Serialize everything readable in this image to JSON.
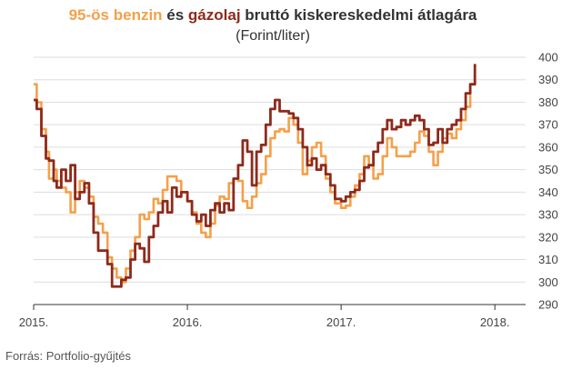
{
  "title_parts": {
    "benzin": "95-ös benzin",
    "es": " és ",
    "gazolaj": "gázolaj",
    "rest": " bruttó kiskereskedelmi átlagára"
  },
  "subtitle": "(Forint/liter)",
  "source": "Forrás: Portfolio-gyűjtés",
  "colors": {
    "benzin": "#f5a04a",
    "gazolaj": "#8e2a1c"
  },
  "chart_data": {
    "type": "line",
    "ylim": [
      290,
      400
    ],
    "yticks": [
      "290",
      "300",
      "310",
      "320",
      "330",
      "340",
      "350",
      "360",
      "370",
      "380",
      "390",
      "400"
    ],
    "xlim": [
      2015.0,
      2018.2
    ],
    "xticks": [
      {
        "label": "2015.",
        "value": 2015.0
      },
      {
        "label": "2016.",
        "value": 2016.0
      },
      {
        "label": "2017.",
        "value": 2017.0
      },
      {
        "label": "2018.",
        "value": 2018.0
      }
    ],
    "series": [
      {
        "name": "95-ös benzin",
        "color": "#f5a04a",
        "points": [
          [
            2015.0,
            388
          ],
          [
            2015.02,
            380
          ],
          [
            2015.05,
            368
          ],
          [
            2015.08,
            358
          ],
          [
            2015.1,
            346
          ],
          [
            2015.13,
            350
          ],
          [
            2015.15,
            345
          ],
          [
            2015.18,
            342
          ],
          [
            2015.21,
            340
          ],
          [
            2015.24,
            331
          ],
          [
            2015.27,
            340
          ],
          [
            2015.3,
            345
          ],
          [
            2015.33,
            342
          ],
          [
            2015.36,
            338
          ],
          [
            2015.39,
            329
          ],
          [
            2015.42,
            326
          ],
          [
            2015.45,
            322
          ],
          [
            2015.48,
            311
          ],
          [
            2015.51,
            306
          ],
          [
            2015.54,
            302
          ],
          [
            2015.57,
            300
          ],
          [
            2015.6,
            306
          ],
          [
            2015.63,
            314
          ],
          [
            2015.66,
            320
          ],
          [
            2015.69,
            330
          ],
          [
            2015.72,
            328
          ],
          [
            2015.75,
            331
          ],
          [
            2015.78,
            337
          ],
          [
            2015.81,
            335
          ],
          [
            2015.84,
            341
          ],
          [
            2015.87,
            347
          ],
          [
            2015.9,
            347
          ],
          [
            2015.93,
            345
          ],
          [
            2015.96,
            340
          ],
          [
            2016.0,
            336
          ],
          [
            2016.03,
            331
          ],
          [
            2016.06,
            326
          ],
          [
            2016.09,
            322
          ],
          [
            2016.12,
            320
          ],
          [
            2016.15,
            326
          ],
          [
            2016.18,
            334
          ],
          [
            2016.21,
            338
          ],
          [
            2016.24,
            337
          ],
          [
            2016.27,
            344
          ],
          [
            2016.3,
            346
          ],
          [
            2016.33,
            345
          ],
          [
            2016.36,
            336
          ],
          [
            2016.39,
            333
          ],
          [
            2016.42,
            338
          ],
          [
            2016.45,
            344
          ],
          [
            2016.48,
            348
          ],
          [
            2016.51,
            356
          ],
          [
            2016.54,
            364
          ],
          [
            2016.57,
            367
          ],
          [
            2016.6,
            368
          ],
          [
            2016.63,
            367
          ],
          [
            2016.66,
            373
          ],
          [
            2016.69,
            370
          ],
          [
            2016.72,
            362
          ],
          [
            2016.75,
            348
          ],
          [
            2016.78,
            354
          ],
          [
            2016.81,
            360
          ],
          [
            2016.84,
            362
          ],
          [
            2016.87,
            356
          ],
          [
            2016.9,
            346
          ],
          [
            2016.93,
            340
          ],
          [
            2016.96,
            335
          ],
          [
            2017.0,
            333
          ],
          [
            2017.03,
            334
          ],
          [
            2017.06,
            338
          ],
          [
            2017.09,
            343
          ],
          [
            2017.12,
            348
          ],
          [
            2017.15,
            356
          ],
          [
            2017.18,
            352
          ],
          [
            2017.21,
            346
          ],
          [
            2017.24,
            348
          ],
          [
            2017.27,
            356
          ],
          [
            2017.3,
            364
          ],
          [
            2017.33,
            360
          ],
          [
            2017.36,
            356
          ],
          [
            2017.39,
            356
          ],
          [
            2017.42,
            356
          ],
          [
            2017.45,
            358
          ],
          [
            2017.48,
            362
          ],
          [
            2017.51,
            367
          ],
          [
            2017.54,
            365
          ],
          [
            2017.57,
            358
          ],
          [
            2017.6,
            352
          ],
          [
            2017.63,
            358
          ],
          [
            2017.66,
            364
          ],
          [
            2017.69,
            366
          ],
          [
            2017.72,
            364
          ],
          [
            2017.75,
            368
          ],
          [
            2017.78,
            372
          ],
          [
            2017.81,
            378
          ],
          [
            2017.84,
            388
          ],
          [
            2017.87,
            392
          ]
        ]
      },
      {
        "name": "gázolaj",
        "color": "#8e2a1c",
        "points": [
          [
            2015.0,
            381
          ],
          [
            2015.02,
            377
          ],
          [
            2015.05,
            365
          ],
          [
            2015.08,
            355
          ],
          [
            2015.1,
            354
          ],
          [
            2015.13,
            345
          ],
          [
            2015.15,
            342
          ],
          [
            2015.18,
            350
          ],
          [
            2015.21,
            345
          ],
          [
            2015.24,
            352
          ],
          [
            2015.27,
            337
          ],
          [
            2015.3,
            340
          ],
          [
            2015.33,
            344
          ],
          [
            2015.36,
            335
          ],
          [
            2015.39,
            322
          ],
          [
            2015.42,
            314
          ],
          [
            2015.45,
            314
          ],
          [
            2015.48,
            308
          ],
          [
            2015.51,
            298
          ],
          [
            2015.54,
            298
          ],
          [
            2015.57,
            301
          ],
          [
            2015.6,
            302
          ],
          [
            2015.63,
            310
          ],
          [
            2015.66,
            317
          ],
          [
            2015.69,
            315
          ],
          [
            2015.72,
            309
          ],
          [
            2015.75,
            320
          ],
          [
            2015.78,
            325
          ],
          [
            2015.81,
            331
          ],
          [
            2015.84,
            336
          ],
          [
            2015.87,
            331
          ],
          [
            2015.9,
            342
          ],
          [
            2015.93,
            338
          ],
          [
            2015.96,
            340
          ],
          [
            2016.0,
            336
          ],
          [
            2016.03,
            330
          ],
          [
            2016.06,
            327
          ],
          [
            2016.09,
            330
          ],
          [
            2016.12,
            325
          ],
          [
            2016.15,
            332
          ],
          [
            2016.18,
            335
          ],
          [
            2016.21,
            331
          ],
          [
            2016.24,
            335
          ],
          [
            2016.27,
            332
          ],
          [
            2016.3,
            346
          ],
          [
            2016.33,
            352
          ],
          [
            2016.36,
            363
          ],
          [
            2016.39,
            358
          ],
          [
            2016.42,
            343
          ],
          [
            2016.45,
            358
          ],
          [
            2016.48,
            361
          ],
          [
            2016.51,
            370
          ],
          [
            2016.54,
            377
          ],
          [
            2016.57,
            381
          ],
          [
            2016.6,
            376
          ],
          [
            2016.63,
            376
          ],
          [
            2016.66,
            375
          ],
          [
            2016.69,
            373
          ],
          [
            2016.72,
            368
          ],
          [
            2016.75,
            360
          ],
          [
            2016.78,
            352
          ],
          [
            2016.81,
            355
          ],
          [
            2016.84,
            350
          ],
          [
            2016.87,
            352
          ],
          [
            2016.9,
            348
          ],
          [
            2016.93,
            343
          ],
          [
            2016.96,
            337
          ],
          [
            2017.0,
            336
          ],
          [
            2017.03,
            338
          ],
          [
            2017.06,
            340
          ],
          [
            2017.09,
            341
          ],
          [
            2017.12,
            345
          ],
          [
            2017.15,
            351
          ],
          [
            2017.18,
            352
          ],
          [
            2017.21,
            358
          ],
          [
            2017.24,
            362
          ],
          [
            2017.27,
            368
          ],
          [
            2017.3,
            372
          ],
          [
            2017.33,
            368
          ],
          [
            2017.36,
            369
          ],
          [
            2017.39,
            372
          ],
          [
            2017.42,
            370
          ],
          [
            2017.45,
            372
          ],
          [
            2017.48,
            374
          ],
          [
            2017.51,
            372
          ],
          [
            2017.54,
            368
          ],
          [
            2017.57,
            361
          ],
          [
            2017.6,
            362
          ],
          [
            2017.63,
            368
          ],
          [
            2017.66,
            362
          ],
          [
            2017.69,
            368
          ],
          [
            2017.72,
            370
          ],
          [
            2017.75,
            372
          ],
          [
            2017.78,
            377
          ],
          [
            2017.81,
            384
          ],
          [
            2017.84,
            388
          ],
          [
            2017.87,
            397
          ]
        ]
      }
    ]
  }
}
